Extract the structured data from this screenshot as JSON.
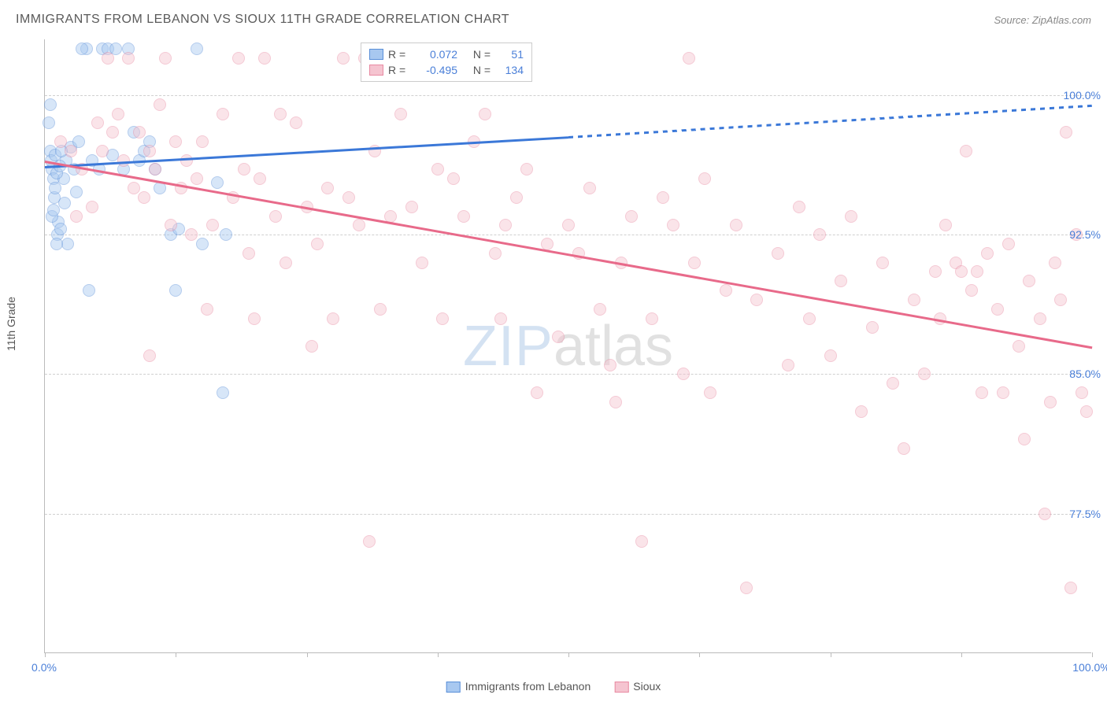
{
  "title": "IMMIGRANTS FROM LEBANON VS SIOUX 11TH GRADE CORRELATION CHART",
  "source": "Source: ZipAtlas.com",
  "watermark": {
    "part1": "ZIP",
    "part2": "atlas"
  },
  "chart": {
    "type": "scatter",
    "ylabel": "11th Grade",
    "xlim": [
      0,
      100
    ],
    "ylim": [
      70,
      103
    ],
    "xtick_positions": [
      0,
      12.5,
      25,
      37.5,
      50,
      62.5,
      75,
      87.5,
      100
    ],
    "xtick_labels": {
      "0": "0.0%",
      "100": "100.0%"
    },
    "ytick_positions": [
      77.5,
      85.0,
      92.5,
      100.0
    ],
    "ytick_labels": [
      "77.5%",
      "85.0%",
      "92.5%",
      "100.0%"
    ],
    "background_color": "#ffffff",
    "grid_color": "#d0d0d0",
    "axis_color": "#bbbbbb",
    "tick_label_color": "#4a7fd8",
    "marker_radius": 8,
    "marker_opacity": 0.45,
    "series": [
      {
        "name": "Immigrants from Lebanon",
        "color_fill": "#a8c8f0",
        "color_stroke": "#5a8fd8",
        "R": "0.072",
        "N": "51",
        "trend": {
          "x1": 0,
          "y1": 96.2,
          "x2": 50,
          "y2": 97.8,
          "dash_to_x": 100,
          "dash_to_y": 99.5,
          "color": "#3b78d8",
          "width": 2.5
        },
        "points": [
          [
            0.5,
            97
          ],
          [
            0.7,
            96
          ],
          [
            0.8,
            95.5
          ],
          [
            0.6,
            96.5
          ],
          [
            1.0,
            96.8
          ],
          [
            0.9,
            94.5
          ],
          [
            1.2,
            92.5
          ],
          [
            1.3,
            93.2
          ],
          [
            1.5,
            92.8
          ],
          [
            0.4,
            98.5
          ],
          [
            0.5,
            99.5
          ],
          [
            1.8,
            95.5
          ],
          [
            2.0,
            96.5
          ],
          [
            1.0,
            95
          ],
          [
            1.1,
            95.8
          ],
          [
            0.7,
            93.5
          ],
          [
            0.8,
            93.8
          ],
          [
            2.5,
            97.2
          ],
          [
            2.2,
            92.0
          ],
          [
            3.0,
            94.8
          ],
          [
            3.2,
            97.5
          ],
          [
            4.0,
            102.5
          ],
          [
            4.5,
            96.5
          ],
          [
            5.2,
            96.0
          ],
          [
            5.5,
            102.5
          ],
          [
            6.0,
            102.5
          ],
          [
            6.5,
            96.8
          ],
          [
            6.8,
            102.5
          ],
          [
            7.5,
            96.0
          ],
          [
            8.0,
            102.5
          ],
          [
            8.5,
            98.0
          ],
          [
            9.0,
            96.5
          ],
          [
            9.5,
            97.0
          ],
          [
            10.0,
            97.5
          ],
          [
            10.5,
            96.0
          ],
          [
            11.0,
            95.0
          ],
          [
            12.0,
            92.5
          ],
          [
            12.5,
            89.5
          ],
          [
            12.8,
            92.8
          ],
          [
            14.5,
            102.5
          ],
          [
            15.0,
            92.0
          ],
          [
            16.5,
            95.3
          ],
          [
            17.0,
            84.0
          ],
          [
            17.3,
            92.5
          ],
          [
            1.4,
            96.2
          ],
          [
            1.6,
            97.0
          ],
          [
            2.8,
            96.0
          ],
          [
            3.5,
            102.5
          ],
          [
            4.2,
            89.5
          ],
          [
            1.9,
            94.2
          ],
          [
            1.1,
            92.0
          ]
        ]
      },
      {
        "name": "Sioux",
        "color_fill": "#f5c4d0",
        "color_stroke": "#e88aa2",
        "R": "-0.495",
        "N": "134",
        "trend": {
          "x1": 0,
          "y1": 96.5,
          "x2": 100,
          "y2": 86.5,
          "color": "#e86a8a",
          "width": 2.5
        },
        "points": [
          [
            1.5,
            97.5
          ],
          [
            2.5,
            97.0
          ],
          [
            3.0,
            93.5
          ],
          [
            3.5,
            96.0
          ],
          [
            4.5,
            94.0
          ],
          [
            5.0,
            98.5
          ],
          [
            5.5,
            97.0
          ],
          [
            6.0,
            102.0
          ],
          [
            6.5,
            98.0
          ],
          [
            7.0,
            99.0
          ],
          [
            7.5,
            96.5
          ],
          [
            8.0,
            102.0
          ],
          [
            8.5,
            95.0
          ],
          [
            9.0,
            98.0
          ],
          [
            9.5,
            94.5
          ],
          [
            10.0,
            97.0
          ],
          [
            10.5,
            96.0
          ],
          [
            11.0,
            99.5
          ],
          [
            11.5,
            102.0
          ],
          [
            12.0,
            93.0
          ],
          [
            12.5,
            97.5
          ],
          [
            13.0,
            95.0
          ],
          [
            14.0,
            92.5
          ],
          [
            14.5,
            95.5
          ],
          [
            15.0,
            97.5
          ],
          [
            15.5,
            88.5
          ],
          [
            16.0,
            93.0
          ],
          [
            17.0,
            99.0
          ],
          [
            18.0,
            94.5
          ],
          [
            18.5,
            102.0
          ],
          [
            19.0,
            96.0
          ],
          [
            20.0,
            88.0
          ],
          [
            20.5,
            95.5
          ],
          [
            21.0,
            102.0
          ],
          [
            22.0,
            93.5
          ],
          [
            22.5,
            99.0
          ],
          [
            23.0,
            91.0
          ],
          [
            24.0,
            98.5
          ],
          [
            25.0,
            94.0
          ],
          [
            25.5,
            86.5
          ],
          [
            26.0,
            92.0
          ],
          [
            27.0,
            95.0
          ],
          [
            28.5,
            102.0
          ],
          [
            29.0,
            94.5
          ],
          [
            30.0,
            93.0
          ],
          [
            30.5,
            102.0
          ],
          [
            31.0,
            76.0
          ],
          [
            31.5,
            97.0
          ],
          [
            32.0,
            88.5
          ],
          [
            33.0,
            93.5
          ],
          [
            34.0,
            99.0
          ],
          [
            35.0,
            94.0
          ],
          [
            35.5,
            102.0
          ],
          [
            36.0,
            91.0
          ],
          [
            37.5,
            96.0
          ],
          [
            38.0,
            88.0
          ],
          [
            39.0,
            95.5
          ],
          [
            40.0,
            93.5
          ],
          [
            41.0,
            97.5
          ],
          [
            42.0,
            99.0
          ],
          [
            43.0,
            91.5
          ],
          [
            43.5,
            88.0
          ],
          [
            45.0,
            94.5
          ],
          [
            46.0,
            96.0
          ],
          [
            47.0,
            84.0
          ],
          [
            48.0,
            92.0
          ],
          [
            49.0,
            87.0
          ],
          [
            50.0,
            93.0
          ],
          [
            51.0,
            91.5
          ],
          [
            52.0,
            95.0
          ],
          [
            54.0,
            85.5
          ],
          [
            54.5,
            83.5
          ],
          [
            55.0,
            91.0
          ],
          [
            56.0,
            93.5
          ],
          [
            57.0,
            76.0
          ],
          [
            58.0,
            88.0
          ],
          [
            59.0,
            94.5
          ],
          [
            60.0,
            93.0
          ],
          [
            61.0,
            85.0
          ],
          [
            61.5,
            102.0
          ],
          [
            62.0,
            91.0
          ],
          [
            63.0,
            95.5
          ],
          [
            63.5,
            84.0
          ],
          [
            65.0,
            89.5
          ],
          [
            66.0,
            93.0
          ],
          [
            67.0,
            73.5
          ],
          [
            68.0,
            89.0
          ],
          [
            70.0,
            91.5
          ],
          [
            71.0,
            85.5
          ],
          [
            72.0,
            94.0
          ],
          [
            73.0,
            88.0
          ],
          [
            74.0,
            92.5
          ],
          [
            75.0,
            86.0
          ],
          [
            76.0,
            90.0
          ],
          [
            77.0,
            93.5
          ],
          [
            78.0,
            83.0
          ],
          [
            79.0,
            87.5
          ],
          [
            80.0,
            91.0
          ],
          [
            81.0,
            84.5
          ],
          [
            82.0,
            81.0
          ],
          [
            83.0,
            89.0
          ],
          [
            84.0,
            85.0
          ],
          [
            85.0,
            90.5
          ],
          [
            85.5,
            88.0
          ],
          [
            86.0,
            93.0
          ],
          [
            87.0,
            91.0
          ],
          [
            87.5,
            90.5
          ],
          [
            88.0,
            97.0
          ],
          [
            88.5,
            89.5
          ],
          [
            89.0,
            90.5
          ],
          [
            89.5,
            84.0
          ],
          [
            90.0,
            91.5
          ],
          [
            91.0,
            88.5
          ],
          [
            91.5,
            84.0
          ],
          [
            92.0,
            92.0
          ],
          [
            93.0,
            86.5
          ],
          [
            93.5,
            81.5
          ],
          [
            94.0,
            90.0
          ],
          [
            95.0,
            88.0
          ],
          [
            95.5,
            77.5
          ],
          [
            96.0,
            83.5
          ],
          [
            96.5,
            91.0
          ],
          [
            97.0,
            89.0
          ],
          [
            97.5,
            98.0
          ],
          [
            98.0,
            73.5
          ],
          [
            98.5,
            92.5
          ],
          [
            99.0,
            84.0
          ],
          [
            99.5,
            83.0
          ],
          [
            10.0,
            86.0
          ],
          [
            13.5,
            96.5
          ],
          [
            19.5,
            91.5
          ],
          [
            27.5,
            88.0
          ],
          [
            44.0,
            93.0
          ],
          [
            53.0,
            88.5
          ]
        ]
      }
    ],
    "legend_bottom": [
      {
        "label": "Immigrants from Lebanon",
        "fill": "#a8c8f0",
        "stroke": "#5a8fd8"
      },
      {
        "label": "Sioux",
        "fill": "#f5c4d0",
        "stroke": "#e88aa2"
      }
    ],
    "legend_top": {
      "R_label": "R =",
      "N_label": "N ="
    }
  }
}
